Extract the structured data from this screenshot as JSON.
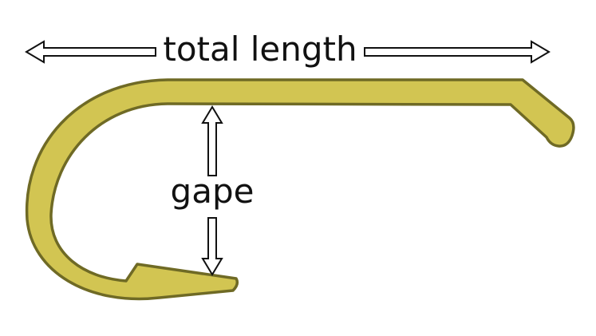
{
  "diagram": {
    "labels": {
      "total_length": "total length",
      "gape": "gape"
    },
    "colors": {
      "hook_fill": "#d2c552",
      "hook_stroke": "#6f6a25",
      "arrow_fill": "#ffffff",
      "arrow_stroke": "#111111",
      "background": "#ffffff"
    }
  }
}
